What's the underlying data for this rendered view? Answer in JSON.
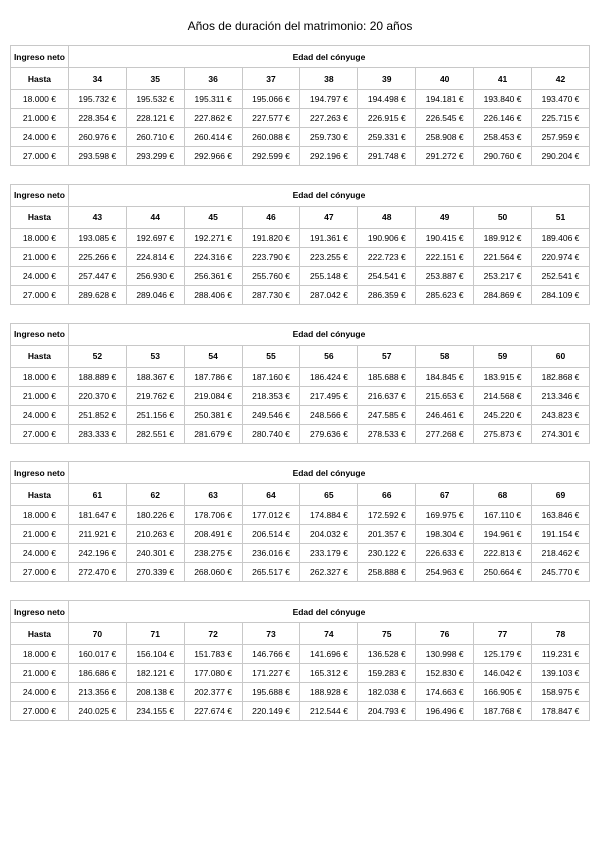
{
  "title": "Años de duración del matrimonio: 20 años",
  "tables": [
    {
      "header_left": "Ingreso neto",
      "header_right": "Edad del cónyuge",
      "sub_left": "Hasta",
      "ages": [
        34,
        35,
        36,
        37,
        38,
        39,
        40,
        41,
        42
      ],
      "rows": [
        {
          "label": "18.000 €",
          "values": [
            "195.732 €",
            "195.532 €",
            "195.311 €",
            "195.066 €",
            "194.797 €",
            "194.498 €",
            "194.181 €",
            "193.840 €",
            "193.470 €"
          ]
        },
        {
          "label": "21.000 €",
          "values": [
            "228.354 €",
            "228.121 €",
            "227.862 €",
            "227.577 €",
            "227.263 €",
            "226.915 €",
            "226.545 €",
            "226.146 €",
            "225.715 €"
          ]
        },
        {
          "label": "24.000 €",
          "values": [
            "260.976 €",
            "260.710 €",
            "260.414 €",
            "260.088 €",
            "259.730 €",
            "259.331 €",
            "258.908 €",
            "258.453 €",
            "257.959 €"
          ]
        },
        {
          "label": "27.000 €",
          "values": [
            "293.598 €",
            "293.299 €",
            "292.966 €",
            "292.599 €",
            "292.196 €",
            "291.748 €",
            "291.272 €",
            "290.760 €",
            "290.204 €"
          ]
        }
      ]
    },
    {
      "header_left": "Ingreso neto",
      "header_right": "Edad del cónyuge",
      "sub_left": "Hasta",
      "ages": [
        43,
        44,
        45,
        46,
        47,
        48,
        49,
        50,
        51
      ],
      "rows": [
        {
          "label": "18.000 €",
          "values": [
            "193.085 €",
            "192.697 €",
            "192.271 €",
            "191.820 €",
            "191.361 €",
            "190.906 €",
            "190.415 €",
            "189.912 €",
            "189.406 €"
          ]
        },
        {
          "label": "21.000 €",
          "values": [
            "225.266 €",
            "224.814 €",
            "224.316 €",
            "223.790 €",
            "223.255 €",
            "222.723 €",
            "222.151 €",
            "221.564 €",
            "220.974 €"
          ]
        },
        {
          "label": "24.000 €",
          "values": [
            "257.447 €",
            "256.930 €",
            "256.361 €",
            "255.760 €",
            "255.148 €",
            "254.541 €",
            "253.887 €",
            "253.217 €",
            "252.541 €"
          ]
        },
        {
          "label": "27.000 €",
          "values": [
            "289.628 €",
            "289.046 €",
            "288.406 €",
            "287.730 €",
            "287.042 €",
            "286.359 €",
            "285.623 €",
            "284.869 €",
            "284.109 €"
          ]
        }
      ]
    },
    {
      "header_left": "Ingreso neto",
      "header_right": "Edad del cónyuge",
      "sub_left": "Hasta",
      "ages": [
        52,
        53,
        54,
        55,
        56,
        57,
        58,
        59,
        60
      ],
      "rows": [
        {
          "label": "18.000 €",
          "values": [
            "188.889 €",
            "188.367 €",
            "187.786 €",
            "187.160 €",
            "186.424 €",
            "185.688 €",
            "184.845 €",
            "183.915 €",
            "182.868 €"
          ]
        },
        {
          "label": "21.000 €",
          "values": [
            "220.370 €",
            "219.762 €",
            "219.084 €",
            "218.353 €",
            "217.495 €",
            "216.637 €",
            "215.653 €",
            "214.568 €",
            "213.346 €"
          ]
        },
        {
          "label": "24.000 €",
          "values": [
            "251.852 €",
            "251.156 €",
            "250.381 €",
            "249.546 €",
            "248.566 €",
            "247.585 €",
            "246.461 €",
            "245.220 €",
            "243.823 €"
          ]
        },
        {
          "label": "27.000 €",
          "values": [
            "283.333 €",
            "282.551 €",
            "281.679 €",
            "280.740 €",
            "279.636 €",
            "278.533 €",
            "277.268 €",
            "275.873 €",
            "274.301 €"
          ]
        }
      ]
    },
    {
      "header_left": "Ingreso neto",
      "header_right": "Edad del cónyuge",
      "sub_left": "Hasta",
      "ages": [
        61,
        62,
        63,
        64,
        65,
        66,
        67,
        68,
        69
      ],
      "rows": [
        {
          "label": "18.000 €",
          "values": [
            "181.647 €",
            "180.226 €",
            "178.706 €",
            "177.012 €",
            "174.884 €",
            "172.592 €",
            "169.975 €",
            "167.110 €",
            "163.846 €"
          ]
        },
        {
          "label": "21.000 €",
          "values": [
            "211.921 €",
            "210.263 €",
            "208.491 €",
            "206.514 €",
            "204.032 €",
            "201.357 €",
            "198.304 €",
            "194.961 €",
            "191.154 €"
          ]
        },
        {
          "label": "24.000 €",
          "values": [
            "242.196 €",
            "240.301 €",
            "238.275 €",
            "236.016 €",
            "233.179 €",
            "230.122 €",
            "226.633 €",
            "222.813 €",
            "218.462 €"
          ]
        },
        {
          "label": "27.000 €",
          "values": [
            "272.470 €",
            "270.339 €",
            "268.060 €",
            "265.517 €",
            "262.327 €",
            "258.888 €",
            "254.963 €",
            "250.664 €",
            "245.770 €"
          ]
        }
      ]
    },
    {
      "header_left": "Ingreso neto",
      "header_right": "Edad del cónyuge",
      "sub_left": "Hasta",
      "ages": [
        70,
        71,
        72,
        73,
        74,
        75,
        76,
        77,
        78
      ],
      "rows": [
        {
          "label": "18.000 €",
          "values": [
            "160.017 €",
            "156.104 €",
            "151.783 €",
            "146.766 €",
            "141.696 €",
            "136.528 €",
            "130.998 €",
            "125.179 €",
            "119.231 €"
          ]
        },
        {
          "label": "21.000 €",
          "values": [
            "186.686 €",
            "182.121 €",
            "177.080 €",
            "171.227 €",
            "165.312 €",
            "159.283 €",
            "152.830 €",
            "146.042 €",
            "139.103 €"
          ]
        },
        {
          "label": "24.000 €",
          "values": [
            "213.356 €",
            "208.138 €",
            "202.377 €",
            "195.688 €",
            "188.928 €",
            "182.038 €",
            "174.663 €",
            "166.905 €",
            "158.975 €"
          ]
        },
        {
          "label": "27.000 €",
          "values": [
            "240.025 €",
            "234.155 €",
            "227.674 €",
            "220.149 €",
            "212.544 €",
            "204.793 €",
            "196.496 €",
            "187.768 €",
            "178.847 €"
          ]
        }
      ]
    }
  ]
}
